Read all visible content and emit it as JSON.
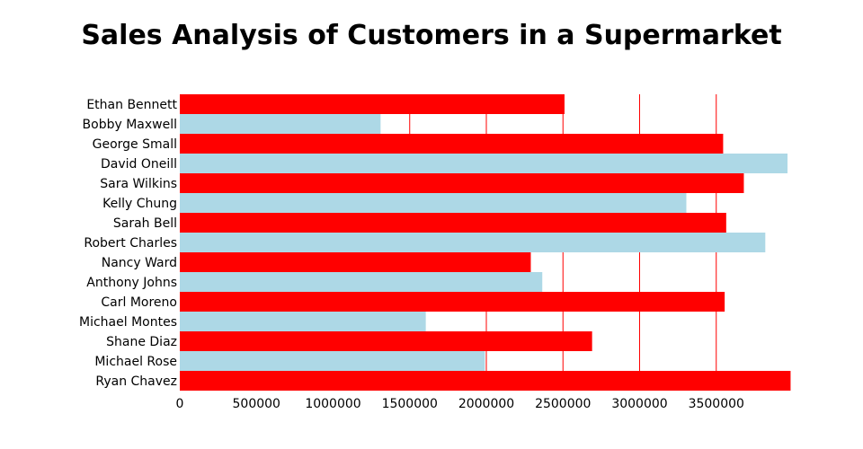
{
  "chart_data": {
    "type": "bar",
    "orientation": "horizontal",
    "title": "Sales Analysis of Customers in a Supermarket",
    "xlabel": "",
    "ylabel": "",
    "xlim": [
      0,
      4000000
    ],
    "xticks": [
      0,
      500000,
      1000000,
      1500000,
      2000000,
      2500000,
      3000000,
      3500000
    ],
    "grid": "vertical",
    "categories": [
      "Ethan Bennett",
      "Bobby Maxwell",
      "George Small",
      "David Oneill",
      "Sara Wilkins",
      "Kelly Chung",
      "Sarah Bell",
      "Robert Charles",
      "Nancy Ward",
      "Anthony Johns",
      "Carl Moreno",
      "Michael Montes",
      "Shane Diaz",
      "Michael Rose",
      "Ryan Chavez"
    ],
    "values": [
      2510000,
      1310000,
      3545000,
      3965000,
      3680000,
      3305000,
      3565000,
      3820000,
      2290000,
      2365000,
      3555000,
      1605000,
      2690000,
      1990000,
      3985000
    ],
    "colors": [
      "#ff0000",
      "#add8e6"
    ],
    "grid_color": "#ff0000"
  }
}
